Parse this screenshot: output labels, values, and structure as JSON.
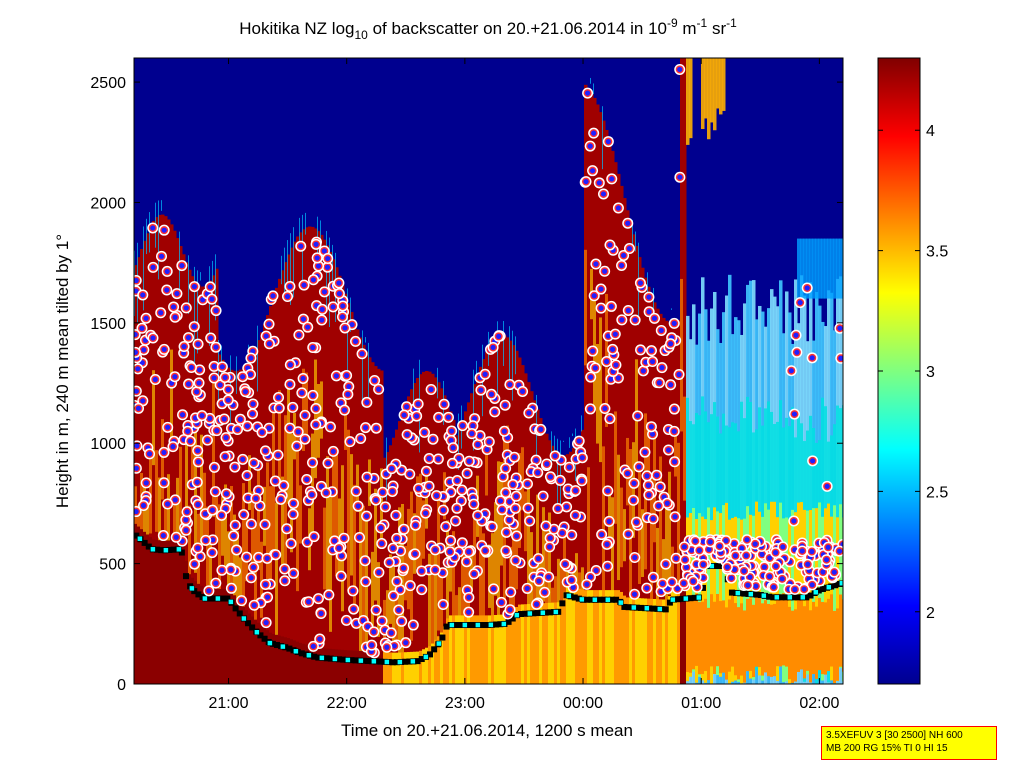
{
  "chart_data": {
    "type": "heatmap",
    "title": {
      "pre": "Hokitika NZ log",
      "sub": "10",
      "mid": " of backscatter on 20.+21.06.2014 in 10",
      "sup1": "-9",
      "mid2": " m",
      "sup2": "-1",
      "mid3": " sr",
      "sup3": "-1"
    },
    "xlabel": "Time on 20.+21.06.2014, 1200 s mean",
    "ylabel": "Height in m, 240 m mean tilted by 1°",
    "x_ticks": [
      "21:00",
      "22:00",
      "23:00",
      "00:00",
      "01:00",
      "02:00"
    ],
    "x_tick_hours": [
      21,
      22,
      23,
      24,
      25,
      26
    ],
    "xlim_hours": [
      20.2,
      26.2
    ],
    "y_ticks": [
      0,
      500,
      1000,
      1500,
      2000,
      2500
    ],
    "ylim": [
      0,
      2600
    ],
    "colorbar": {
      "ticks": [
        2,
        2.5,
        3,
        3.5,
        4
      ],
      "tick_labels": [
        "2",
        "2.5",
        "3",
        "3.5",
        "4"
      ],
      "range": [
        1.7,
        4.3
      ],
      "colormap": "jet"
    },
    "mixing_layer": [
      [
        20.2,
        625
      ],
      [
        20.35,
        560
      ],
      [
        20.45,
        555
      ],
      [
        20.6,
        560
      ],
      [
        20.65,
        420
      ],
      [
        20.72,
        380
      ],
      [
        20.8,
        355
      ],
      [
        21.0,
        355
      ],
      [
        21.05,
        320
      ],
      [
        21.15,
        260
      ],
      [
        21.25,
        210
      ],
      [
        21.35,
        170
      ],
      [
        21.5,
        150
      ],
      [
        21.6,
        130
      ],
      [
        21.75,
        110
      ],
      [
        22.0,
        100
      ],
      [
        22.2,
        95
      ],
      [
        22.4,
        90
      ],
      [
        22.6,
        95
      ],
      [
        22.7,
        120
      ],
      [
        22.8,
        180
      ],
      [
        22.85,
        245
      ],
      [
        23.2,
        245
      ],
      [
        23.35,
        250
      ],
      [
        23.45,
        290
      ],
      [
        23.8,
        300
      ],
      [
        23.85,
        370
      ],
      [
        24.0,
        350
      ],
      [
        24.3,
        350
      ],
      [
        24.35,
        320
      ],
      [
        24.7,
        310
      ],
      [
        24.75,
        350
      ],
      [
        25.0,
        360
      ],
      [
        25.05,
        490
      ],
      [
        25.2,
        490
      ],
      [
        25.25,
        380
      ],
      [
        25.5,
        370
      ],
      [
        25.6,
        360
      ],
      [
        25.9,
        360
      ],
      [
        26.0,
        390
      ],
      [
        26.2,
        420
      ]
    ]
  },
  "infobox": {
    "line1": "3.5XEFUV 3 [30 2500] NH 600",
    "line2": "MB 200 RG 15% TI 0 HI 15"
  }
}
